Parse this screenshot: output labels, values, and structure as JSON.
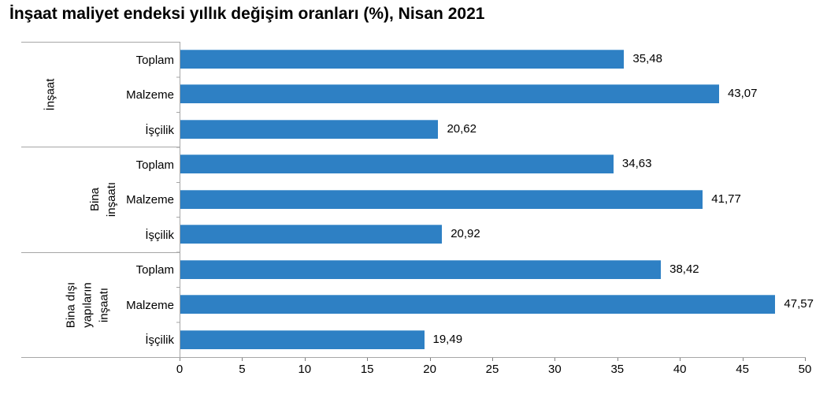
{
  "chart_data": {
    "type": "bar",
    "orientation": "horizontal",
    "title": "İnşaat maliyet endeksi yıllık değişim oranları (%), Nisan 2021",
    "xlabel": "",
    "ylabel": "",
    "xlim": [
      0,
      50
    ],
    "x_ticks": [
      0,
      5,
      10,
      15,
      20,
      25,
      30,
      35,
      40,
      45,
      50
    ],
    "grid": "off",
    "legend": "none",
    "bar_color": "#2e80c4",
    "axis_line_color": "#a6a6a6",
    "decimal_separator": ",",
    "groups": [
      {
        "name": "İnşaat",
        "name_lines": [
          "İnşaat"
        ],
        "categories": [
          "Toplam",
          "Malzeme",
          "İşçilik"
        ],
        "values": [
          35.48,
          43.07,
          20.62
        ],
        "value_labels": [
          "35,48",
          "43,07",
          "20,62"
        ]
      },
      {
        "name": "Bina inşaatı",
        "name_lines": [
          "Bina",
          "inşaatı"
        ],
        "categories": [
          "Toplam",
          "Malzeme",
          "İşçilik"
        ],
        "values": [
          34.63,
          41.77,
          20.92
        ],
        "value_labels": [
          "34,63",
          "41,77",
          "20,92"
        ]
      },
      {
        "name": "Bina dışı yapıların inşaatı",
        "name_lines": [
          "Bina dışı",
          "yapıların",
          "inşaatı"
        ],
        "categories": [
          "Toplam",
          "Malzeme",
          "İşçilik"
        ],
        "values": [
          38.42,
          47.57,
          19.49
        ],
        "value_labels": [
          "38,42",
          "47,57",
          "19,49"
        ]
      }
    ]
  }
}
